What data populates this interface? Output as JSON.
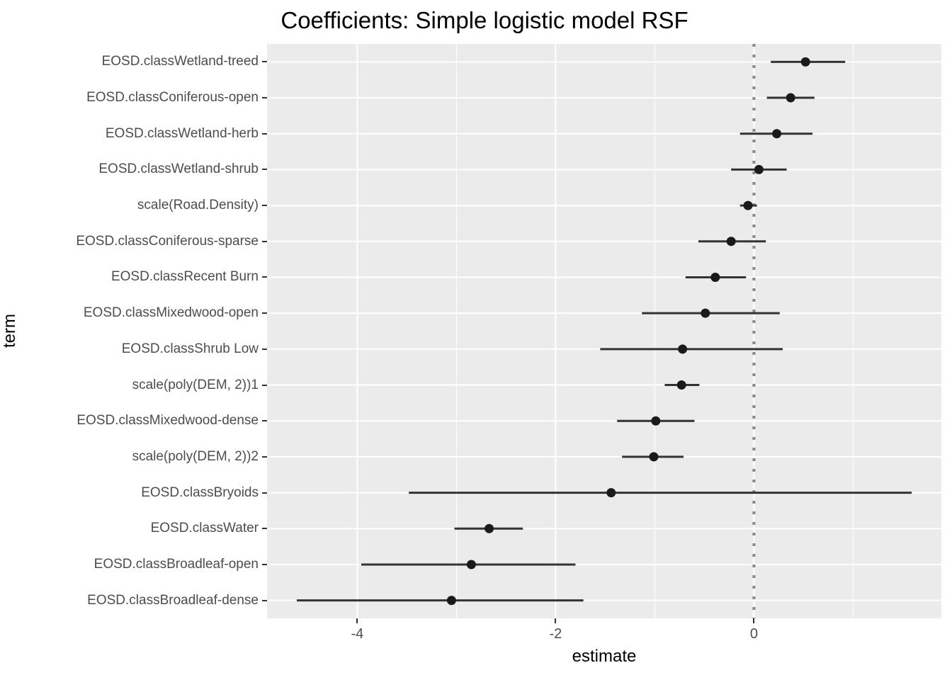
{
  "title": "Coefficients: Simple logistic model RSF",
  "chart_data": {
    "type": "scatter",
    "subtype": "coefficient-pointrange",
    "title": "Coefficients: Simple logistic model RSF",
    "xlabel": "estimate",
    "ylabel": "term",
    "xlim": [
      -4.91,
      1.89
    ],
    "x_major_gridlines": [
      -4,
      -2,
      0
    ],
    "x_minor_gridlines": [
      -3,
      -1,
      1
    ],
    "x_ticks": [
      {
        "label": "-4",
        "value": -4
      },
      {
        "label": "-2",
        "value": -2
      },
      {
        "label": "0",
        "value": 0
      }
    ],
    "zero_line": {
      "value": 0,
      "style": "dotted"
    },
    "grid": "on",
    "legend": "none",
    "points": [
      {
        "term": "EOSD.classWetland-treed",
        "estimate": 0.52,
        "conf_low": 0.17,
        "conf_high": 0.92
      },
      {
        "term": "EOSD.classConiferous-open",
        "estimate": 0.37,
        "conf_low": 0.13,
        "conf_high": 0.61
      },
      {
        "term": "EOSD.classWetland-herb",
        "estimate": 0.23,
        "conf_low": -0.14,
        "conf_high": 0.59
      },
      {
        "term": "EOSD.classWetland-shrub",
        "estimate": 0.05,
        "conf_low": -0.23,
        "conf_high": 0.33
      },
      {
        "term": "scale(Road.Density)",
        "estimate": -0.06,
        "conf_low": -0.14,
        "conf_high": 0.03
      },
      {
        "term": "EOSD.classConiferous-sparse",
        "estimate": -0.23,
        "conf_low": -0.56,
        "conf_high": 0.12
      },
      {
        "term": "EOSD.classRecent Burn",
        "estimate": -0.39,
        "conf_low": -0.69,
        "conf_high": -0.08
      },
      {
        "term": "EOSD.classMixedwood-open",
        "estimate": -0.49,
        "conf_low": -1.13,
        "conf_high": 0.26
      },
      {
        "term": "EOSD.classShrub Low",
        "estimate": -0.72,
        "conf_low": -1.55,
        "conf_high": 0.29
      },
      {
        "term": "scale(poly(DEM, 2))1",
        "estimate": -0.73,
        "conf_low": -0.9,
        "conf_high": -0.55
      },
      {
        "term": "EOSD.classMixedwood-dense",
        "estimate": -0.99,
        "conf_low": -1.38,
        "conf_high": -0.6
      },
      {
        "term": "scale(poly(DEM, 2))2",
        "estimate": -1.01,
        "conf_low": -1.33,
        "conf_high": -0.71
      },
      {
        "term": "EOSD.classBryoids",
        "estimate": -1.44,
        "conf_low": -3.48,
        "conf_high": 1.59
      },
      {
        "term": "EOSD.classWater",
        "estimate": -2.67,
        "conf_low": -3.02,
        "conf_high": -2.33
      },
      {
        "term": "EOSD.classBroadleaf-open",
        "estimate": -2.85,
        "conf_low": -3.96,
        "conf_high": -1.8
      },
      {
        "term": "EOSD.classBroadleaf-dense",
        "estimate": -3.05,
        "conf_low": -4.61,
        "conf_high": -1.72
      }
    ]
  },
  "colors": {
    "background": "#FFFFFF",
    "panel_background": "#EBEBEB",
    "gridline": "#FFFFFF",
    "zero_line": "#888888",
    "ci_line": "#333333",
    "point": "#1A1A1A",
    "tick_mark": "#333333",
    "tick_label": "#4D4D4D",
    "axis_title": "#000000",
    "title": "#000000"
  }
}
